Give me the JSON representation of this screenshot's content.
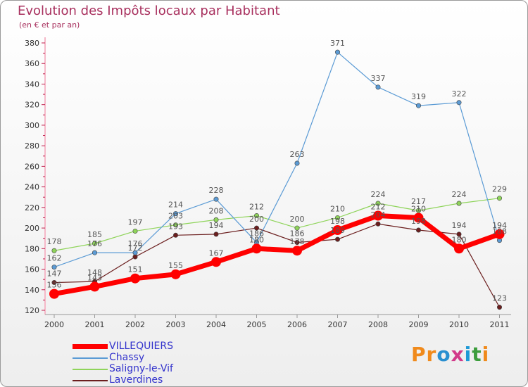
{
  "chart_data": {
    "type": "line",
    "title": "Evolution des Impôts locaux par Habitant",
    "subtitle": "(en € et par an)",
    "xlabel": "",
    "ylabel": "",
    "categories": [
      "2000",
      "2001",
      "2002",
      "2003",
      "2004",
      "2005",
      "2006",
      "2007",
      "2008",
      "2009",
      "2010",
      "2011"
    ],
    "ylim": [
      120,
      380
    ],
    "yticks": [
      120,
      140,
      160,
      180,
      200,
      220,
      240,
      260,
      280,
      300,
      320,
      340,
      360,
      380
    ],
    "grid": false,
    "legend_position": "bottom-left",
    "series": [
      {
        "name": "Laverdines",
        "color": "#6b1e1e",
        "values": [
          147,
          148,
          172,
          193,
          194,
          200,
          186,
          189,
          204,
          198,
          194,
          123
        ],
        "labels": [
          "147",
          "148",
          "172",
          "193",
          "194",
          "200",
          "186",
          "189",
          "204",
          "198",
          "194",
          "123"
        ]
      },
      {
        "name": "Saligny-le-Vif",
        "color": "#8fd45a",
        "values": [
          178,
          185,
          197,
          203,
          208,
          212,
          200,
          210,
          224,
          217,
          224,
          229
        ],
        "labels": [
          "178",
          "185",
          "197",
          "203",
          "208",
          "212",
          "200",
          "210",
          "224",
          "217",
          "224",
          "229"
        ]
      },
      {
        "name": "Chassy",
        "color": "#5b9bd5",
        "values": [
          162,
          176,
          176,
          214,
          228,
          186,
          263,
          371,
          337,
          319,
          322,
          188
        ],
        "labels": [
          "162",
          "176",
          "176",
          "214",
          "228",
          "186",
          "263",
          "371",
          "337",
          "319",
          "322",
          "188"
        ]
      },
      {
        "name": "VILLEQUIERS",
        "color": "#ff0000",
        "values": [
          136,
          143,
          151,
          155,
          167,
          180,
          178,
          198,
          212,
          210,
          180,
          194
        ],
        "labels": [
          "136",
          "143",
          "151",
          "155",
          "167",
          "180",
          "178",
          "198",
          "212",
          "210",
          "180",
          "194"
        ]
      }
    ],
    "legend_order": [
      "VILLEQUIERS",
      "Chassy",
      "Saligny-le-Vif",
      "Laverdines"
    ]
  },
  "legend_colors": {
    "VILLEQUIERS": "#3333cc",
    "Chassy": "#3333cc",
    "Saligny-le-Vif": "#3333cc",
    "Laverdines": "#3333cc"
  },
  "logo": {
    "text": "Proxiti",
    "letters": [
      "P",
      "r",
      "o",
      "x",
      "i",
      "t",
      "i"
    ],
    "colors": [
      "#f08a1c",
      "#f08a1c",
      "#2a8fd0",
      "#d23a8a",
      "#1f9ad6",
      "#3c9d3c",
      "#f08a1c"
    ]
  }
}
